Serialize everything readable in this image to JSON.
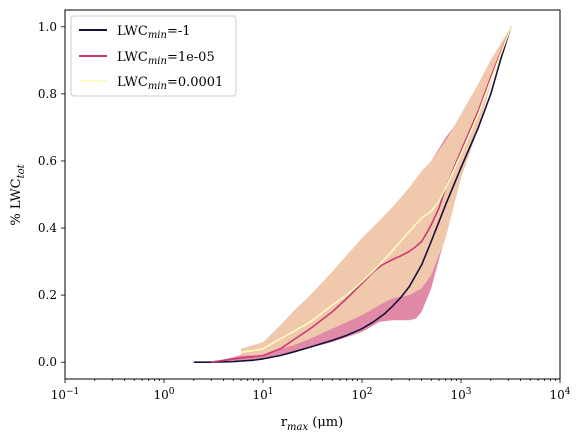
{
  "chart_data": {
    "type": "line",
    "xscale": "log",
    "xlim": [
      0.1,
      10000
    ],
    "ylim": [
      -0.05,
      1.05
    ],
    "x_ticks": [
      0.1,
      1,
      10,
      100,
      1000,
      10000
    ],
    "x_tick_labels": [
      {
        "base": "10",
        "exp": "−1"
      },
      {
        "base": "10",
        "exp": "0"
      },
      {
        "base": "10",
        "exp": "1"
      },
      {
        "base": "10",
        "exp": "2"
      },
      {
        "base": "10",
        "exp": "3"
      },
      {
        "base": "10",
        "exp": "4"
      }
    ],
    "y_ticks": [
      0.0,
      0.2,
      0.4,
      0.6,
      0.8,
      1.0
    ],
    "y_tick_labels": [
      "0.0",
      "0.2",
      "0.4",
      "0.6",
      "0.8",
      "1.0"
    ],
    "xlabel": {
      "main": "r",
      "sub": "max",
      "rest": " (μm)"
    },
    "ylabel": {
      "main": "% LWC",
      "sub": "tot"
    },
    "grid": false,
    "legend_position": "upper-left",
    "series": [
      {
        "label_prefix": "LWC",
        "label_sub": "min",
        "label_suffix": "=-1",
        "color": "#1a0f3c",
        "fill_color": null,
        "line": [
          [
            2,
            0
          ],
          [
            3,
            0
          ],
          [
            5,
            0.002
          ],
          [
            8,
            0.006
          ],
          [
            10,
            0.01
          ],
          [
            15,
            0.02
          ],
          [
            20,
            0.03
          ],
          [
            30,
            0.045
          ],
          [
            50,
            0.065
          ],
          [
            70,
            0.08
          ],
          [
            100,
            0.1
          ],
          [
            130,
            0.12
          ],
          [
            170,
            0.145
          ],
          [
            200,
            0.165
          ],
          [
            250,
            0.195
          ],
          [
            300,
            0.225
          ],
          [
            400,
            0.29
          ],
          [
            500,
            0.36
          ],
          [
            700,
            0.47
          ],
          [
            1000,
            0.58
          ],
          [
            1500,
            0.7
          ],
          [
            2000,
            0.8
          ],
          [
            2500,
            0.9
          ],
          [
            3200,
            1.0
          ]
        ],
        "band_upper": [],
        "band_lower": []
      },
      {
        "label_prefix": "LWC",
        "label_sub": "min",
        "label_suffix": "=1e-05",
        "color": "#cc3a72",
        "fill_color": "#e08aa8",
        "line": [
          [
            3,
            0
          ],
          [
            5,
            0.01
          ],
          [
            7,
            0.015
          ],
          [
            10,
            0.02
          ],
          [
            15,
            0.04
          ],
          [
            20,
            0.065
          ],
          [
            30,
            0.1
          ],
          [
            50,
            0.15
          ],
          [
            70,
            0.19
          ],
          [
            100,
            0.235
          ],
          [
            130,
            0.27
          ],
          [
            160,
            0.29
          ],
          [
            200,
            0.305
          ],
          [
            250,
            0.318
          ],
          [
            300,
            0.33
          ],
          [
            350,
            0.345
          ],
          [
            400,
            0.36
          ],
          [
            450,
            0.385
          ],
          [
            500,
            0.41
          ],
          [
            600,
            0.46
          ],
          [
            700,
            0.52
          ],
          [
            1000,
            0.63
          ],
          [
            1500,
            0.75
          ],
          [
            2000,
            0.85
          ],
          [
            3200,
            1.0
          ]
        ],
        "band_upper": [
          [
            3,
            0
          ],
          [
            5,
            0.015
          ],
          [
            10,
            0.04
          ],
          [
            20,
            0.1
          ],
          [
            50,
            0.2
          ],
          [
            100,
            0.3
          ],
          [
            200,
            0.4
          ],
          [
            300,
            0.48
          ],
          [
            500,
            0.6
          ],
          [
            700,
            0.67
          ],
          [
            1000,
            0.73
          ],
          [
            1500,
            0.83
          ],
          [
            2000,
            0.9
          ],
          [
            3200,
            1.0
          ]
        ],
        "band_lower": [
          [
            3,
            0
          ],
          [
            5,
            0.005
          ],
          [
            10,
            0.01
          ],
          [
            20,
            0.03
          ],
          [
            50,
            0.06
          ],
          [
            100,
            0.09
          ],
          [
            150,
            0.12
          ],
          [
            200,
            0.125
          ],
          [
            250,
            0.125
          ],
          [
            300,
            0.125
          ],
          [
            350,
            0.13
          ],
          [
            400,
            0.15
          ],
          [
            500,
            0.22
          ],
          [
            700,
            0.38
          ],
          [
            1000,
            0.55
          ],
          [
            1500,
            0.7
          ],
          [
            2000,
            0.83
          ],
          [
            3200,
            1.0
          ]
        ]
      },
      {
        "label_prefix": "LWC",
        "label_sub": "min",
        "label_suffix": "=0.0001",
        "color": "#fcfdbf",
        "fill_color": "#f0c8ac",
        "line": [
          [
            6,
            0.03
          ],
          [
            8,
            0.035
          ],
          [
            10,
            0.04
          ],
          [
            15,
            0.07
          ],
          [
            20,
            0.09
          ],
          [
            30,
            0.12
          ],
          [
            50,
            0.17
          ],
          [
            70,
            0.2
          ],
          [
            100,
            0.24
          ],
          [
            150,
            0.29
          ],
          [
            200,
            0.33
          ],
          [
            300,
            0.39
          ],
          [
            400,
            0.43
          ],
          [
            500,
            0.45
          ],
          [
            600,
            0.48
          ],
          [
            700,
            0.52
          ],
          [
            1000,
            0.62
          ],
          [
            1500,
            0.74
          ],
          [
            2000,
            0.84
          ],
          [
            3200,
            1.0
          ]
        ],
        "band_upper": [
          [
            6,
            0.04
          ],
          [
            10,
            0.06
          ],
          [
            15,
            0.11
          ],
          [
            20,
            0.15
          ],
          [
            30,
            0.2
          ],
          [
            50,
            0.27
          ],
          [
            100,
            0.37
          ],
          [
            200,
            0.46
          ],
          [
            300,
            0.52
          ],
          [
            400,
            0.57
          ],
          [
            500,
            0.6
          ],
          [
            700,
            0.66
          ],
          [
            1000,
            0.74
          ],
          [
            1500,
            0.83
          ],
          [
            2000,
            0.9
          ],
          [
            3200,
            1.0
          ]
        ],
        "band_lower": [
          [
            6,
            0.02
          ],
          [
            10,
            0.02
          ],
          [
            15,
            0.04
          ],
          [
            20,
            0.05
          ],
          [
            30,
            0.07
          ],
          [
            50,
            0.1
          ],
          [
            100,
            0.14
          ],
          [
            150,
            0.17
          ],
          [
            200,
            0.19
          ],
          [
            300,
            0.2
          ],
          [
            400,
            0.22
          ],
          [
            500,
            0.26
          ],
          [
            700,
            0.37
          ],
          [
            1000,
            0.55
          ],
          [
            1500,
            0.7
          ],
          [
            2000,
            0.83
          ],
          [
            3200,
            1.0
          ]
        ]
      }
    ]
  }
}
